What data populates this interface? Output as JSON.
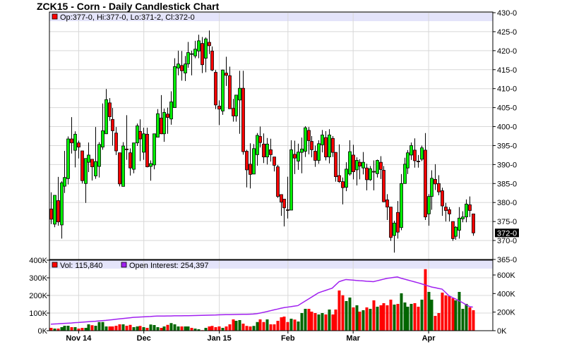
{
  "title": "ZCK15 - Corn - Daily Candlestick Chart",
  "chart_data": [
    {
      "type": "candlestick",
      "title": "ZCK15 - Corn - Daily Candlestick Chart",
      "legend": "Op:377-0, Hi:377-0, Lo:371-2, Cl:372-0",
      "last_price_label": "372-0",
      "ylim": [
        365,
        430
      ],
      "yticks": [
        "365-0",
        "370-0",
        "375-0",
        "380-0",
        "385-0",
        "390-0",
        "395-0",
        "400-0",
        "405-0",
        "410-0",
        "415-0",
        "420-0",
        "425-0",
        "430-0"
      ],
      "grid": true,
      "xticks": [
        {
          "label": "Nov 14",
          "index": 8
        },
        {
          "label": "Dec",
          "index": 27
        },
        {
          "label": "Jan 15",
          "index": 49
        },
        {
          "label": "Feb",
          "index": 69
        },
        {
          "label": "Mar",
          "index": 88
        },
        {
          "label": "Apr",
          "index": 110
        }
      ],
      "ohlc_fields": [
        "open",
        "high",
        "low",
        "close"
      ],
      "candles": [
        [
          378.3,
          382.7,
          374.3,
          375.6
        ],
        [
          374.3,
          381.6,
          373.5,
          381.9
        ],
        [
          380.5,
          386.75,
          373.9,
          374.9
        ],
        [
          374.1,
          385.6,
          370.5,
          385.2
        ],
        [
          384.3,
          393.6,
          382.5,
          386.6
        ],
        [
          386.3,
          397.4,
          384.75,
          396.75
        ],
        [
          396.75,
          402.5,
          392.9,
          395.7
        ],
        [
          393.75,
          398.75,
          389.25,
          398
        ],
        [
          395.7,
          396.3,
          391.6,
          394.6
        ],
        [
          393.6,
          393.6,
          385,
          385.75
        ],
        [
          385,
          391.6,
          379.9,
          391.6
        ],
        [
          390.6,
          395.8,
          388,
          392.5
        ],
        [
          391.4,
          391.4,
          385.8,
          389.4
        ],
        [
          387,
          399.9,
          386.25,
          390.8
        ],
        [
          389.5,
          395.9,
          386.6,
          395.3
        ],
        [
          394.6,
          406.1,
          393.9,
          398.9
        ],
        [
          398.1,
          409.9,
          398.1,
          407.1
        ],
        [
          406.25,
          407.5,
          401.5,
          402.6
        ],
        [
          401.9,
          404.9,
          395,
          398.9
        ],
        [
          398.3,
          399.9,
          392.5,
          393.6
        ],
        [
          393.1,
          393.1,
          384.25,
          384.9
        ],
        [
          384.25,
          395.9,
          384.25,
          394.9
        ],
        [
          394.1,
          403,
          391.25,
          393.9
        ],
        [
          393.1,
          394.25,
          387.1,
          389.1
        ],
        [
          388.75,
          395.7,
          387.7,
          395.7
        ],
        [
          395.7,
          400.8,
          394.9,
          400.2
        ],
        [
          398.75,
          401.9,
          390.9,
          396.75
        ],
        [
          393.25,
          399.7,
          391.25,
          398.1
        ],
        [
          398,
          399.7,
          389.25,
          389.4
        ],
        [
          389.5,
          391.1,
          385.75,
          390.25
        ],
        [
          389.9,
          398.1,
          388.75,
          398.1
        ],
        [
          397.2,
          404.6,
          397.2,
          403.4
        ],
        [
          402.25,
          408.3,
          398,
          398.1
        ],
        [
          398.1,
          404.75,
          396,
          403.75
        ],
        [
          403.3,
          405,
          398.1,
          402.4
        ],
        [
          402,
          409.3,
          400.5,
          406.5
        ],
        [
          405,
          418,
          405,
          415.8
        ],
        [
          415.4,
          420,
          413.5,
          416.5
        ],
        [
          416.1,
          419.9,
          412.1,
          414.7
        ],
        [
          414.1,
          418.6,
          412,
          416.5
        ],
        [
          416.5,
          422.3,
          415.5,
          419.5
        ],
        [
          419.1,
          420,
          413.5,
          419.2
        ],
        [
          418.6,
          422.6,
          418,
          420.4
        ],
        [
          419.9,
          424.2,
          418,
          422.6
        ],
        [
          421.9,
          423.6,
          414.1,
          416.3
        ],
        [
          418,
          423.5,
          414.3,
          423.1
        ],
        [
          422.2,
          425.3,
          419.1,
          421.3
        ],
        [
          419.9,
          421.1,
          414.6,
          414.9
        ],
        [
          414.3,
          414.9,
          404.6,
          405.7
        ],
        [
          405.4,
          406.9,
          400.4,
          404.6
        ],
        [
          404.1,
          415,
          403.1,
          414.9
        ],
        [
          414.1,
          418.4,
          410.7,
          413.5
        ],
        [
          413.4,
          415.8,
          404.7,
          404.7
        ],
        [
          404.8,
          407.3,
          401.3,
          402.8
        ],
        [
          402.8,
          408.3,
          401.3,
          408.3
        ],
        [
          407,
          414.7,
          398.1,
          410.1
        ],
        [
          410.1,
          414.7,
          392.6,
          393.4
        ],
        [
          393.5,
          393.9,
          384,
          388.6
        ],
        [
          390.1,
          395.6,
          383.7,
          387.4
        ],
        [
          387.5,
          395.4,
          387.5,
          394.2
        ],
        [
          392.6,
          398.3,
          389.7,
          397.7
        ],
        [
          397.4,
          400,
          394.5,
          395.8
        ],
        [
          395.4,
          398.2,
          390.4,
          392
        ],
        [
          392,
          397,
          390,
          395.4
        ],
        [
          393.9,
          396.8,
          390.8,
          392.6
        ],
        [
          392,
          392,
          388.2,
          389.8
        ],
        [
          389.4,
          389.9,
          381.2,
          381.6
        ],
        [
          382.1,
          382.1,
          376.5,
          380.1
        ],
        [
          380.9,
          380.9,
          373.7,
          378.6
        ],
        [
          378.1,
          386.8,
          375.8,
          378
        ],
        [
          378,
          396.4,
          378,
          393.9
        ],
        [
          392.7,
          396.3,
          387.5,
          391.7
        ],
        [
          390.9,
          395.5,
          388.6,
          393.3
        ],
        [
          393.2,
          397.1,
          387.7,
          394.1
        ],
        [
          393.5,
          400.1,
          392,
          399.7
        ],
        [
          399,
          399.9,
          392.7,
          396.3
        ],
        [
          396.1,
          397.5,
          391.9,
          393.9
        ],
        [
          393.5,
          395,
          389.4,
          391.1
        ],
        [
          391.1,
          396.4,
          390.2,
          395.5
        ],
        [
          395.2,
          399.1,
          393.2,
          397.8
        ],
        [
          397.1,
          398.8,
          391.1,
          392
        ],
        [
          392,
          399.3,
          390.3,
          397.8
        ],
        [
          396.9,
          397.5,
          392,
          393.2
        ],
        [
          393.2,
          393.3,
          385.5,
          386.8
        ],
        [
          387.1,
          395.3,
          385.2,
          385.5
        ],
        [
          385.5,
          386.6,
          379.5,
          383.9
        ],
        [
          384,
          390.6,
          383,
          388.8
        ],
        [
          387.5,
          396.4,
          387.1,
          393.4
        ],
        [
          392.5,
          395.2,
          386.1,
          388.1
        ],
        [
          388.6,
          391.9,
          384.5,
          391.1
        ],
        [
          390.6,
          391.4,
          386.1,
          389.6
        ],
        [
          389.1,
          393.3,
          387.4,
          390.6
        ],
        [
          389.1,
          390.2,
          383.2,
          386
        ],
        [
          386,
          389.6,
          385.7,
          388.9
        ],
        [
          388.2,
          391.1,
          383.2,
          388.1
        ],
        [
          387.6,
          391.3,
          386.6,
          391.1
        ],
        [
          390.6,
          392.2,
          386.2,
          388.7
        ],
        [
          388.5,
          389.6,
          380.1,
          380.2
        ],
        [
          380.7,
          382.2,
          375.4,
          378.8
        ],
        [
          378.8,
          378.8,
          369.9,
          370.8
        ],
        [
          371.3,
          375.2,
          366.8,
          374.6
        ],
        [
          377.4,
          380.4,
          370.5,
          372.2
        ],
        [
          373.4,
          387.5,
          372.7,
          385
        ],
        [
          385,
          391.8,
          385,
          390.1
        ],
        [
          389.1,
          393.8,
          387.5,
          393.1
        ],
        [
          392.5,
          395.8,
          391.2,
          395
        ],
        [
          393.8,
          396.9,
          389.2,
          391
        ],
        [
          390.9,
          392.5,
          389.2,
          390.8
        ],
        [
          391.4,
          395,
          390.9,
          394.4
        ],
        [
          393.8,
          398.3,
          375.4,
          376.2
        ],
        [
          377,
          382.2,
          373.9,
          381.6
        ],
        [
          381.6,
          388.5,
          378.1,
          386.4
        ],
        [
          386.1,
          390.1,
          383.3,
          384.9
        ],
        [
          385,
          387.2,
          381.9,
          382.8
        ],
        [
          383.1,
          383.9,
          376.5,
          379.1
        ],
        [
          378.8,
          379.9,
          375,
          377.9
        ],
        [
          378.1,
          378.8,
          375,
          377
        ],
        [
          375,
          375,
          369.9,
          370.5
        ],
        [
          371.1,
          373.8,
          370.2,
          373.5
        ],
        [
          372.7,
          378.8,
          370.5,
          375.9
        ],
        [
          375.7,
          377.7,
          374.8,
          376.2
        ],
        [
          376.2,
          380.8,
          374.8,
          379.6
        ],
        [
          379.4,
          381.6,
          376.2,
          377.9
        ],
        [
          377,
          377,
          371.25,
          372
        ]
      ]
    },
    {
      "type": "bar+line",
      "legend_volume": "Vol: 115,840",
      "legend_oi": "Open Interest: 254,397",
      "y_left_ticks": [
        "0K",
        "100K",
        "200K",
        "300K",
        "400K"
      ],
      "y_left_lim": [
        0,
        400
      ],
      "y_right_ticks": [
        "0K",
        "200K",
        "400K",
        "600K"
      ],
      "y_right_lim": [
        0,
        600
      ],
      "units": "thousands",
      "volume": [
        16,
        12,
        12,
        20,
        28,
        28,
        20,
        20,
        12,
        16,
        16,
        36,
        31,
        28,
        49,
        49,
        24,
        24,
        24,
        28,
        36,
        36,
        28,
        33,
        20,
        24,
        27,
        20,
        16,
        35,
        32,
        20,
        16,
        24,
        33,
        43,
        36,
        24,
        24,
        24,
        24,
        16,
        12,
        8,
        3,
        16,
        24,
        27,
        20,
        24,
        16,
        24,
        36,
        64,
        56,
        60,
        40,
        27,
        24,
        27,
        49,
        64,
        49,
        64,
        36,
        36,
        56,
        76,
        80,
        49,
        68,
        63,
        52,
        100,
        124,
        124,
        108,
        100,
        92,
        100,
        92,
        120,
        92,
        120,
        228,
        201,
        168,
        188,
        132,
        144,
        108,
        116,
        132,
        124,
        172,
        136,
        144,
        156,
        144,
        176,
        148,
        152,
        212,
        160,
        136,
        152,
        156,
        136,
        176,
        349,
        220,
        176,
        84,
        100,
        216,
        200,
        196,
        184,
        172,
        220,
        124,
        152,
        132,
        116
      ],
      "open_interest": [
        70,
        72,
        74,
        77,
        79,
        81,
        83,
        86,
        88,
        91,
        94,
        97,
        100,
        102,
        105,
        108,
        111,
        115,
        119,
        123,
        127,
        131,
        135,
        139,
        143,
        145,
        147,
        149,
        151,
        153,
        156,
        158,
        158,
        158,
        159,
        159,
        160,
        160,
        160,
        161,
        161,
        162,
        163,
        164,
        165,
        166,
        167,
        168,
        169,
        171,
        172,
        173,
        173,
        174,
        175,
        176,
        177,
        177,
        178,
        179,
        183,
        190,
        198,
        206,
        215,
        224,
        232,
        241,
        249,
        254,
        259,
        265,
        270,
        293,
        316,
        339,
        362,
        385,
        408,
        421,
        433,
        446,
        458,
        493,
        528,
        540,
        551,
        548,
        545,
        541,
        538,
        536,
        533,
        531,
        528,
        537,
        546,
        555,
        564,
        569,
        574,
        579,
        566,
        556,
        546,
        536,
        526,
        516,
        505,
        493,
        482,
        470,
        463,
        455,
        448,
        413,
        377,
        358,
        340,
        321,
        302,
        280,
        260,
        254
      ]
    }
  ],
  "colors": {
    "up_candle": "#00ee00",
    "down_candle": "#ff0000",
    "volume_up": "#006600",
    "volume_down": "#ff0000",
    "open_interest": "#a020f0",
    "legend_band": "#e4e4fa",
    "grid": "#d8d8d8"
  }
}
